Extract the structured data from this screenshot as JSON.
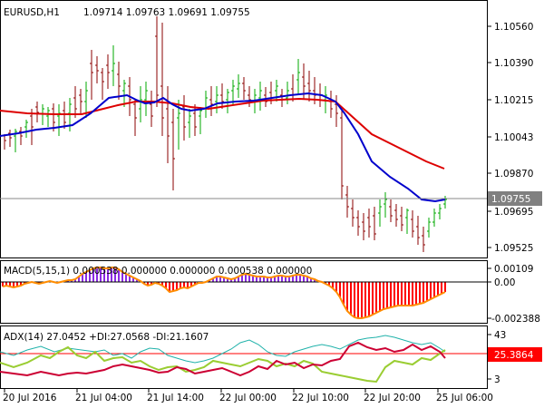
{
  "main_panel": {
    "symbol_label": "EURUSD,H1",
    "ohlc_label": "1.09714 1.09763 1.09691 1.09755",
    "y_ticks": [
      "1.10560",
      "1.10390",
      "1.10215",
      "1.10043",
      "1.09870",
      "1.09695",
      "1.09525"
    ],
    "current_price_tag": "1.09755",
    "colors": {
      "up_bar": "#00aa00",
      "down_bar": "#8b0000",
      "ma_fast": "#0000cc",
      "ma_slow": "#dd0000",
      "price_line": "#888888",
      "tag_bg": "#808080"
    }
  },
  "macd_panel": {
    "label": "MACD(5,15,1) 0.000538 0.000000 0.000000 0.000538 0.000000",
    "y_ticks": [
      "0.00109",
      "0.00",
      "-0.002388"
    ],
    "colors": {
      "histogram_positive": "#8a2be2",
      "histogram_negative": "#ff0000",
      "signal": "#ff8c00"
    }
  },
  "adx_panel": {
    "label": "ADX(14) 27.0452 +DI:27.0568 -DI:21.1607",
    "y_ticks": [
      "43",
      "3"
    ],
    "level_tag": "25.3864",
    "colors": {
      "adx": "#20b2aa",
      "plus_di": "#9acd32",
      "minus_di": "#cc0033",
      "level_line": "#ff0000"
    }
  },
  "x_ticks": [
    "20 Jul 2016",
    "21 Jul 04:00",
    "21 Jul 14:00",
    "22 Jul 00:00",
    "22 Jul 10:00",
    "22 Jul 20:00",
    "25 Jul 06:00"
  ]
}
